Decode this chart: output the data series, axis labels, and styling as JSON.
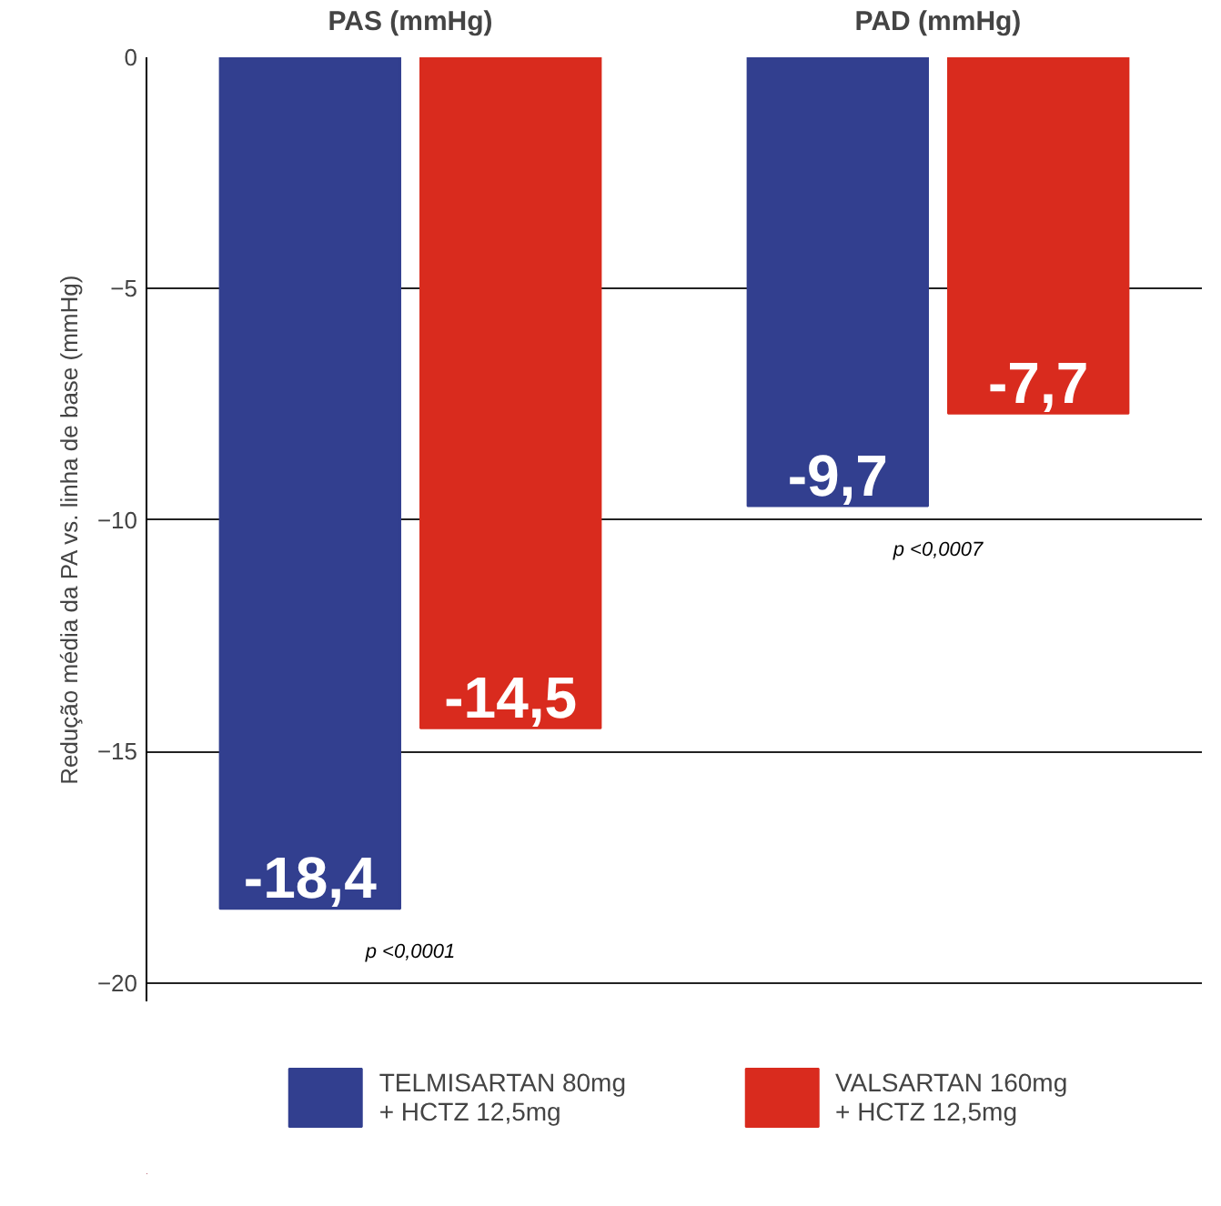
{
  "chart_data": {
    "type": "bar",
    "ylabel": "Redução média da PA vs. linha de base (mmHg)",
    "categories": [
      "PAS (mmHg)",
      "PAD (mmHg)"
    ],
    "series": [
      {
        "name": "TELMISARTAN 80mg\n+ HCTZ 12,5mg",
        "color": "#323f8f",
        "values": [
          -18.4,
          -9.7
        ],
        "value_labels": [
          "-18,4",
          "-9,7"
        ]
      },
      {
        "name": "VALSARTAN 160mg\n+ HCTZ 12,5mg",
        "color": "#d92b1e",
        "values": [
          -14.5,
          -7.7
        ],
        "value_labels": [
          "-14,5",
          "-7,7"
        ]
      }
    ],
    "ylim": [
      -20.4,
      0
    ],
    "yticks": [
      0,
      -5,
      -10,
      -15,
      -20
    ],
    "grid": "y",
    "legend": "bottom",
    "annotations": [
      "p <0,0001",
      "p <0,0007"
    ]
  }
}
